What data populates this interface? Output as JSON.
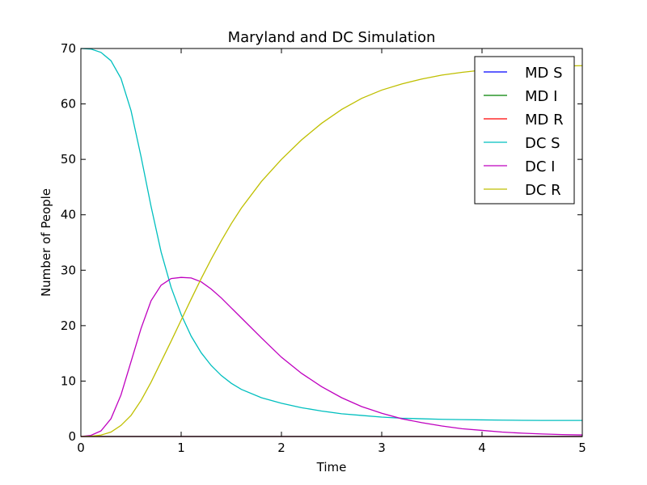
{
  "chart_data": {
    "type": "line",
    "title": "Maryland and DC Simulation",
    "xlabel": "Time",
    "ylabel": "Number of People",
    "xlim": [
      0,
      5
    ],
    "ylim": [
      0,
      70
    ],
    "xticks": [
      "0",
      "1",
      "2",
      "3",
      "4",
      "5"
    ],
    "yticks": [
      "0",
      "10",
      "20",
      "30",
      "40",
      "50",
      "60",
      "70"
    ],
    "grid": false,
    "legend_position": "top-right",
    "x": [
      0,
      0.1,
      0.2,
      0.3,
      0.4,
      0.5,
      0.6,
      0.7,
      0.8,
      0.9,
      1.0,
      1.1,
      1.2,
      1.3,
      1.4,
      1.5,
      1.6,
      1.8,
      2.0,
      2.2,
      2.4,
      2.6,
      2.8,
      3.0,
      3.2,
      3.4,
      3.6,
      3.8,
      4.0,
      4.2,
      4.4,
      4.6,
      4.8,
      5.0
    ],
    "series": [
      {
        "name": "MD S",
        "color": "#0000ff",
        "values": [
          0,
          0,
          0,
          0,
          0,
          0,
          0,
          0,
          0,
          0,
          0,
          0,
          0,
          0,
          0,
          0,
          0,
          0,
          0,
          0,
          0,
          0,
          0,
          0,
          0,
          0,
          0,
          0,
          0,
          0,
          0,
          0,
          0,
          0
        ]
      },
      {
        "name": "MD I",
        "color": "#008000",
        "values": [
          0,
          0,
          0,
          0,
          0,
          0,
          0,
          0,
          0,
          0,
          0,
          0,
          0,
          0,
          0,
          0,
          0,
          0,
          0,
          0,
          0,
          0,
          0,
          0,
          0,
          0,
          0,
          0,
          0,
          0,
          0,
          0,
          0,
          0
        ]
      },
      {
        "name": "MD R",
        "color": "#ff0000",
        "values": [
          0,
          0,
          0,
          0,
          0,
          0,
          0,
          0,
          0,
          0,
          0,
          0,
          0,
          0,
          0,
          0,
          0,
          0,
          0,
          0,
          0,
          0,
          0,
          0,
          0,
          0,
          0,
          0,
          0,
          0,
          0,
          0,
          0,
          0
        ]
      },
      {
        "name": "DC S",
        "color": "#00bfbf",
        "values": [
          70,
          69.9,
          69.3,
          67.8,
          64.6,
          58.8,
          50.5,
          41.5,
          33.3,
          26.9,
          22.0,
          18.1,
          15.1,
          12.8,
          11.0,
          9.6,
          8.5,
          7.0,
          6.0,
          5.2,
          4.6,
          4.1,
          3.8,
          3.5,
          3.3,
          3.2,
          3.1,
          3.05,
          3.0,
          2.95,
          2.92,
          2.9,
          2.9,
          2.9
        ]
      },
      {
        "name": "DC I",
        "color": "#bf00bf",
        "values": [
          0,
          0.2,
          1.0,
          3.2,
          7.5,
          13.5,
          19.5,
          24.5,
          27.3,
          28.5,
          28.7,
          28.6,
          27.9,
          26.6,
          25.0,
          23.2,
          21.4,
          17.8,
          14.3,
          11.4,
          9.0,
          7.0,
          5.4,
          4.2,
          3.2,
          2.5,
          1.9,
          1.4,
          1.1,
          0.8,
          0.6,
          0.45,
          0.35,
          0.28
        ]
      },
      {
        "name": "DC R",
        "color": "#bfbf00",
        "values": [
          0,
          0.05,
          0.25,
          0.8,
          2.0,
          3.8,
          6.5,
          9.8,
          13.5,
          17.2,
          21.0,
          24.8,
          28.5,
          32.0,
          35.3,
          38.4,
          41.2,
          46.0,
          50.0,
          53.5,
          56.5,
          59.0,
          61.0,
          62.5,
          63.6,
          64.5,
          65.2,
          65.7,
          66.1,
          66.4,
          66.6,
          66.75,
          66.85,
          66.9
        ]
      }
    ]
  }
}
